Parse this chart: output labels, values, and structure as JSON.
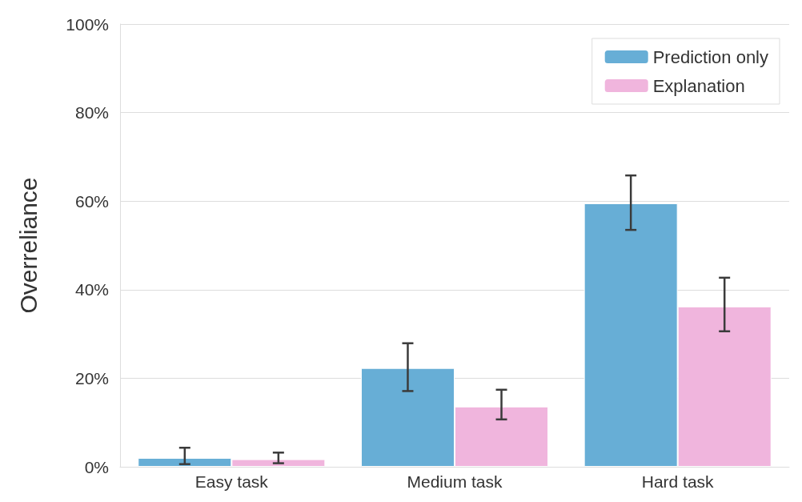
{
  "chart_data": {
    "type": "bar",
    "ylabel": "Overreliance",
    "categories": [
      "Easy task",
      "Medium task",
      "Hard task"
    ],
    "series": [
      {
        "name": "Prediction only",
        "color": "#67aed6",
        "values": [
          2.0,
          22.3,
          59.5
        ],
        "errors": [
          [
            0.6,
            4.3
          ],
          [
            17.1,
            27.9
          ],
          [
            53.5,
            65.8
          ]
        ]
      },
      {
        "name": "Explanation",
        "color": "#f0b5dd",
        "values": [
          1.7,
          13.6,
          36.2
        ],
        "errors": [
          [
            0.8,
            3.2
          ],
          [
            10.7,
            17.4
          ],
          [
            30.6,
            42.7
          ]
        ]
      }
    ],
    "ylim": [
      0,
      100
    ],
    "yticks": [
      {
        "value": 0,
        "label": "0%"
      },
      {
        "value": 20,
        "label": "20%"
      },
      {
        "value": 40,
        "label": "40%"
      },
      {
        "value": 60,
        "label": "60%"
      },
      {
        "value": 80,
        "label": "80%"
      },
      {
        "value": 100,
        "label": "100%"
      }
    ],
    "grid": "y",
    "legend": "top right"
  }
}
